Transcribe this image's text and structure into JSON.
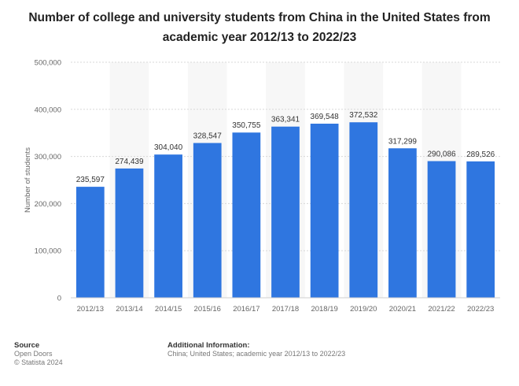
{
  "title": "Number of college and university students from China in the United States from academic year 2012/13 to 2022/23",
  "chart_data": {
    "type": "bar",
    "categories": [
      "2012/13",
      "2013/14",
      "2014/15",
      "2015/16",
      "2016/17",
      "2017/18",
      "2018/19",
      "2019/20",
      "2020/21",
      "2021/22",
      "2022/23"
    ],
    "values": [
      235597,
      274439,
      304040,
      328547,
      350755,
      363341,
      369548,
      372532,
      317299,
      290086,
      289526
    ],
    "value_labels": [
      "235,597",
      "274,439",
      "304,040",
      "328,547",
      "350,755",
      "363,341",
      "369,548",
      "372,532",
      "317,299",
      "290,086",
      "289,526"
    ],
    "ylabel": "Number of students",
    "xlabel": "",
    "ylim": [
      0,
      500000
    ],
    "yticks": [
      0,
      100000,
      200000,
      300000,
      400000,
      500000
    ],
    "ytick_labels": [
      "0",
      "100,000",
      "200,000",
      "300,000",
      "400,000",
      "500,000"
    ],
    "bar_color": "#2f76e0",
    "grid": true
  },
  "footer": {
    "source_heading": "Source",
    "source_line1": "Open Doors",
    "source_line2": "© Statista 2024",
    "info_heading": "Additional Information:",
    "info_text": "China; United States; academic year 2012/13 to 2022/23"
  }
}
